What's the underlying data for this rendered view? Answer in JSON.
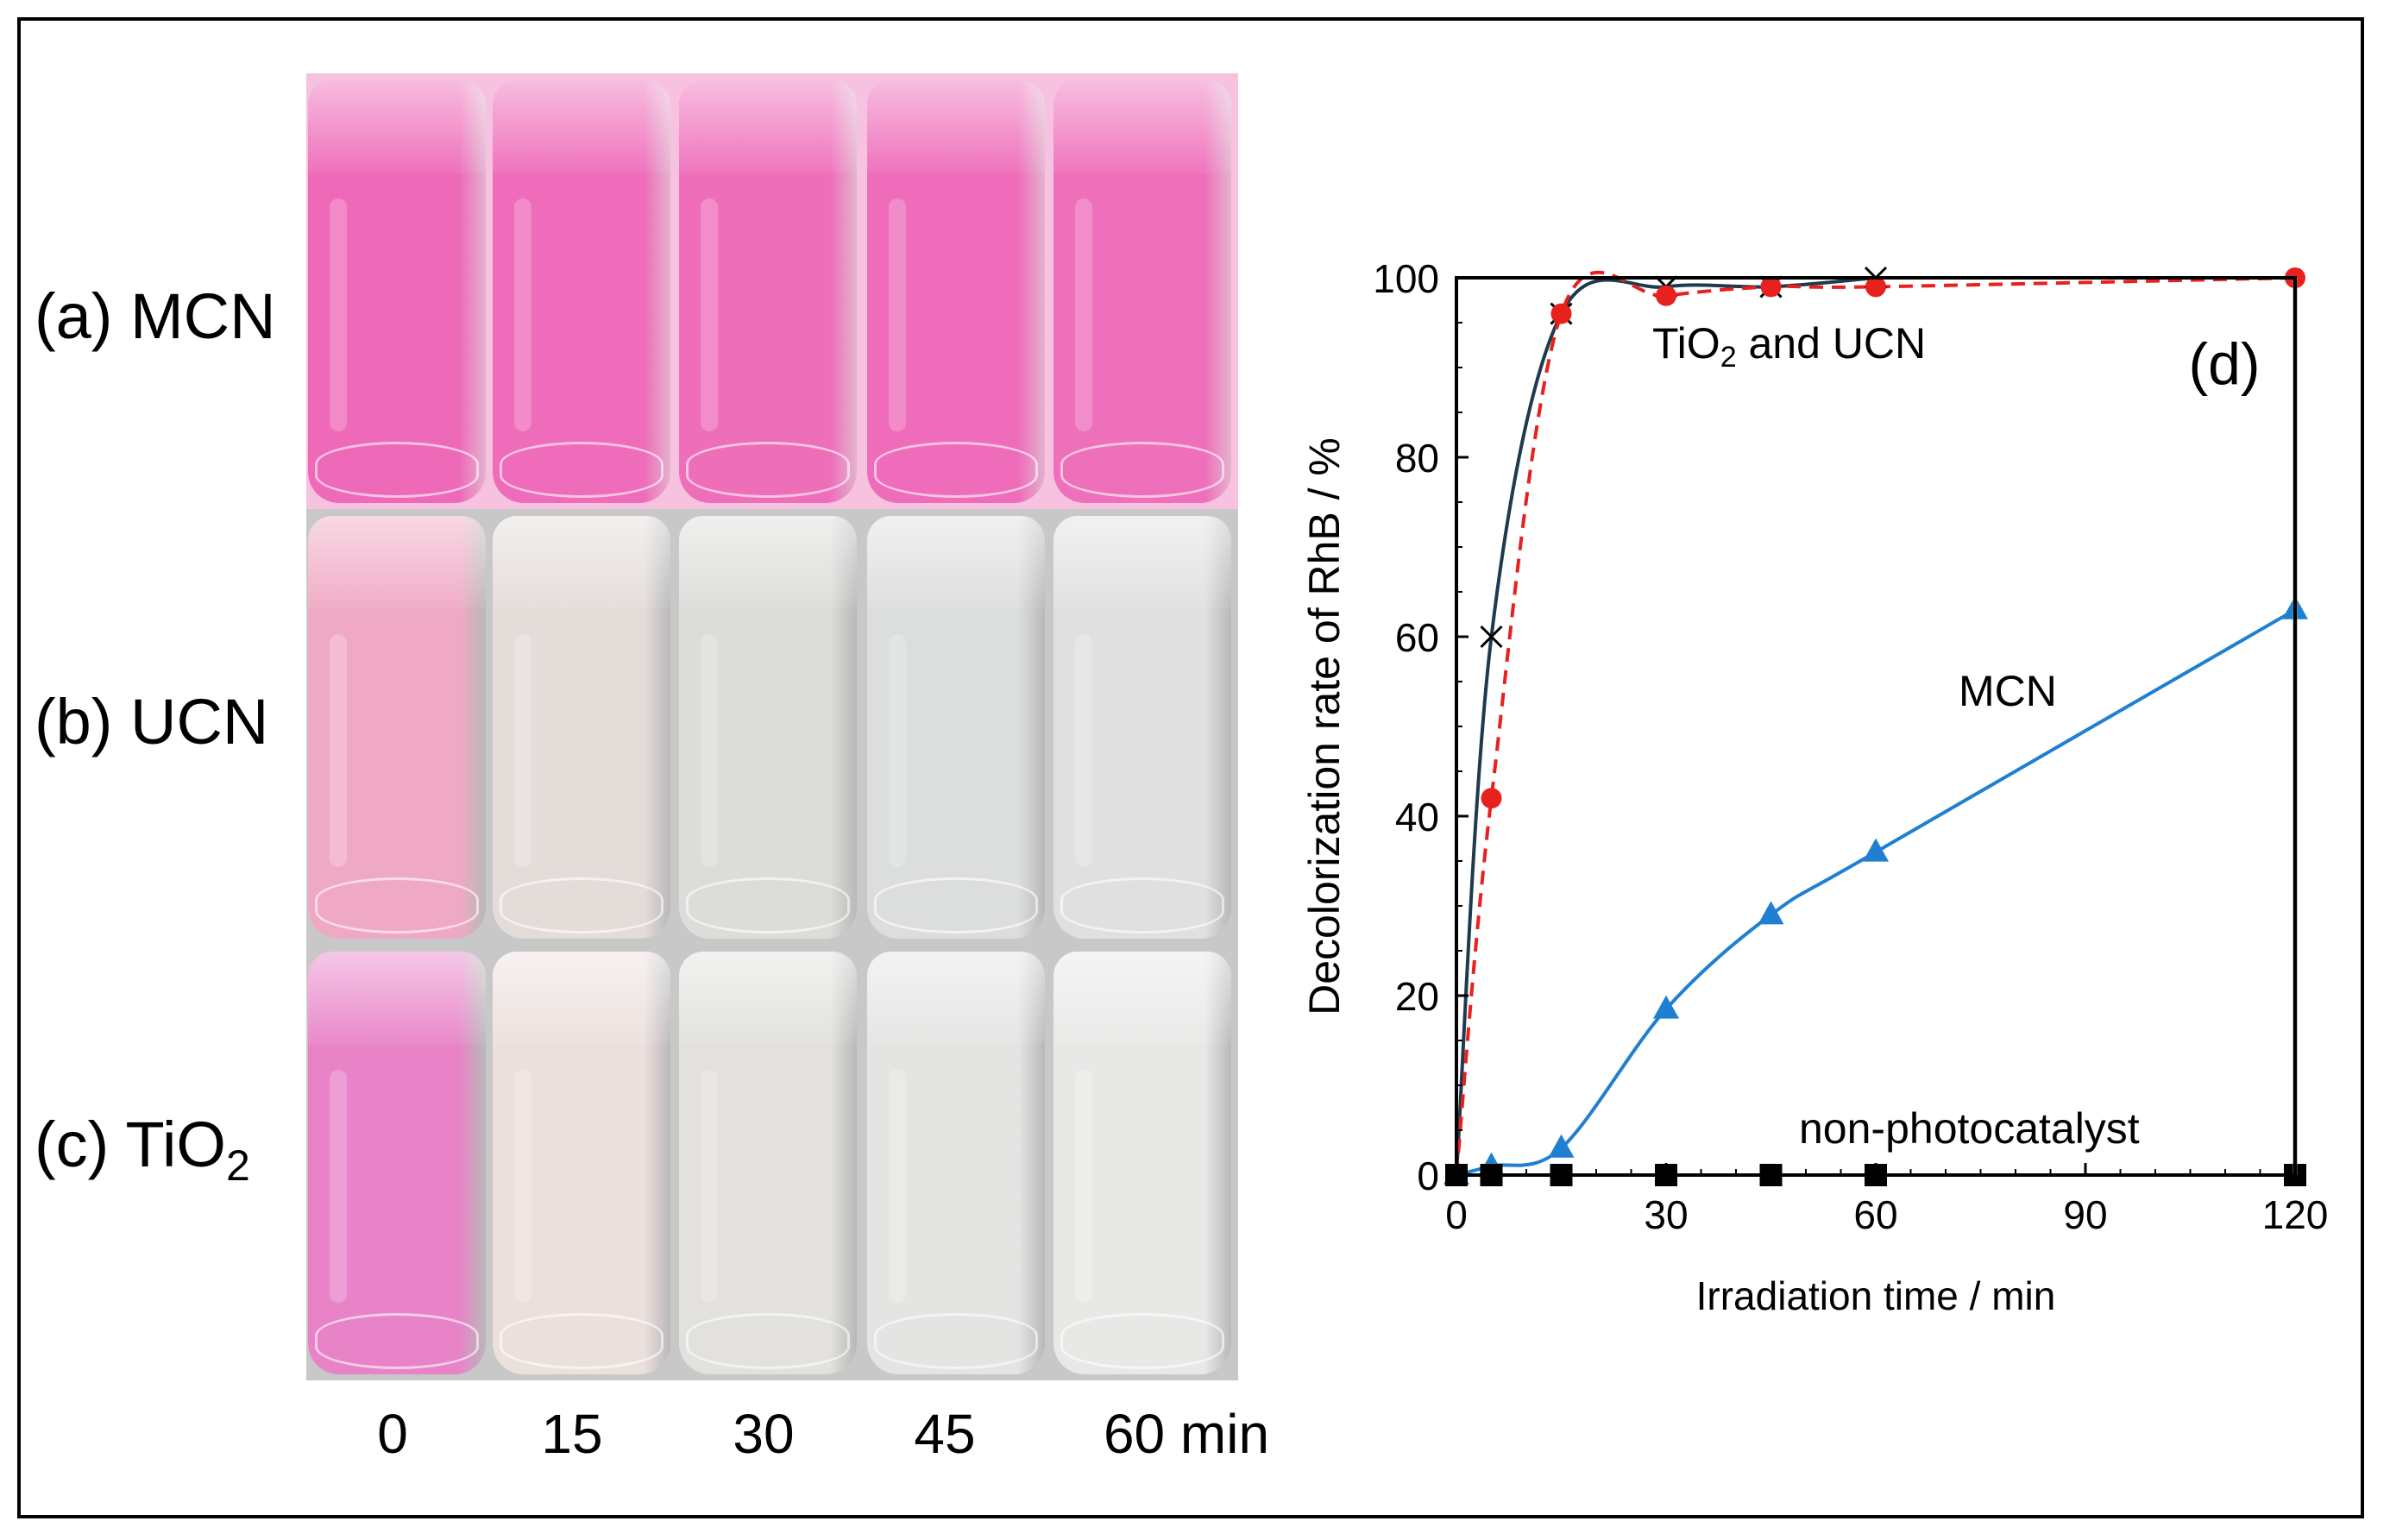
{
  "photos": {
    "rows": [
      {
        "label_prefix": "(a) ",
        "label_main": "MCN",
        "label_sub": "",
        "colors": [
          "#ee6ab8",
          "#ee6cb9",
          "#ef6eba",
          "#ee6cb9",
          "#ee6fba"
        ]
      },
      {
        "label_prefix": "(b) ",
        "label_main": "UCN",
        "label_sub": "",
        "colors": [
          "#f0a9c4",
          "#e4dcd9",
          "#dcdcd9",
          "#dcdedd",
          "#dfe0df"
        ]
      },
      {
        "label_prefix": "(c) ",
        "label_main": "TiO",
        "label_sub": "2",
        "colors": [
          "#e883c8",
          "#ece0dd",
          "#e2e1dd",
          "#e4e4e3",
          "#e8e8e7"
        ]
      }
    ],
    "time_labels": [
      "0",
      "15",
      "30",
      "45",
      "60 min"
    ]
  },
  "chart_data": {
    "type": "line",
    "panel_label": "(d)",
    "xlabel": "Irradiation time / min",
    "ylabel": "Decolorization rate of RhB / %",
    "xlim": [
      0,
      120
    ],
    "ylim": [
      0,
      100
    ],
    "xticks": [
      0,
      30,
      60,
      90,
      120
    ],
    "yticks": [
      0,
      20,
      40,
      60,
      80,
      100
    ],
    "series": [
      {
        "marker": "cross",
        "color": "#000000",
        "line_color": "#1f3a4d",
        "line_style": "solid",
        "x": [
          0,
          5,
          15,
          30,
          45,
          60
        ],
        "y": [
          0,
          60,
          96,
          99,
          99,
          100
        ]
      },
      {
        "marker": "circle",
        "color": "#e8201e",
        "line_color": "#e8201e",
        "line_style": "dashed",
        "x": [
          0,
          5,
          15,
          30,
          45,
          60,
          120
        ],
        "y": [
          0,
          42,
          96,
          98,
          99,
          99,
          100
        ]
      },
      {
        "marker": "triangle",
        "color": "#1f7fd0",
        "line_color": "#1f7fd0",
        "line_style": "solid",
        "x": [
          0,
          5,
          15,
          30,
          45,
          60,
          120
        ],
        "y": [
          0,
          1,
          3,
          18.5,
          29,
          36,
          63
        ]
      },
      {
        "marker": "square",
        "color": "#000000",
        "line_color": "#000000",
        "line_style": "solid",
        "x": [
          0,
          5,
          15,
          30,
          45,
          60,
          120
        ],
        "y": [
          0,
          0,
          0,
          0,
          0,
          0,
          0
        ]
      }
    ],
    "annotations": [
      {
        "text_main": "TiO",
        "text_sub": "2",
        "text_rest": " and UCN"
      },
      {
        "text_main": "MCN",
        "text_sub": "",
        "text_rest": ""
      },
      {
        "text_main": "non-photocatalyst",
        "text_sub": "",
        "text_rest": ""
      }
    ]
  }
}
